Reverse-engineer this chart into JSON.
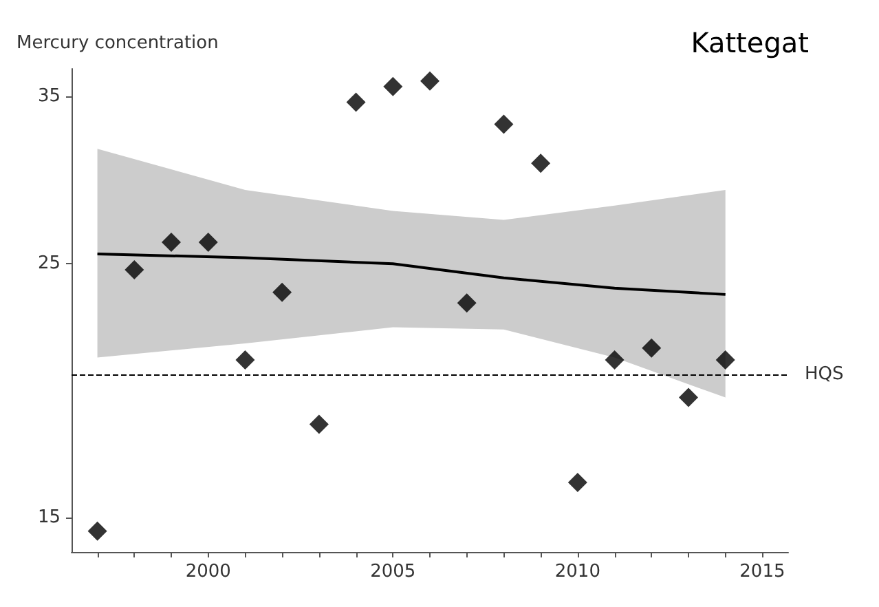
{
  "chart_data": {
    "type": "scatter",
    "title": "Kattegat",
    "ylabel": "Mercury concentration",
    "x": [
      1997,
      1998,
      1999,
      2000,
      2001,
      2002,
      2003,
      2004,
      2005,
      2006,
      2007,
      2008,
      2009,
      2010,
      2011,
      2012,
      2013,
      2014
    ],
    "series": [
      {
        "color": "#000000",
        "marker": "diamond",
        "values": [
          14.6,
          24.7,
          26.1,
          26.1,
          20.6,
          23.6,
          18.1,
          34.6,
          35.7,
          36.1,
          23.1,
          33.1,
          30.6,
          16.1,
          20.6,
          21.1,
          19.1,
          20.6
        ]
      },
      {
        "type": "line",
        "color": "#000000",
        "x": [
          1997,
          2001,
          2005,
          2008,
          2011,
          2014
        ],
        "values": [
          25.5,
          25.3,
          25.0,
          24.3,
          23.8,
          23.5
        ],
        "lower": [
          20.7,
          21.3,
          22.0,
          21.9,
          20.7,
          19.1
        ],
        "upper": [
          31.5,
          29.0,
          27.8,
          27.3,
          28.1,
          29.0
        ]
      }
    ],
    "log": "y",
    "xlim": [
      1996.3,
      2015.7
    ],
    "ylim": [
      14,
      37
    ],
    "xticks": [
      {
        "value": 1997,
        "label": null
      },
      {
        "value": 1998,
        "label": null
      },
      {
        "value": 1999,
        "label": null
      },
      2000,
      {
        "value": 2001,
        "label": null
      },
      {
        "value": 2002,
        "label": null
      },
      {
        "value": 2003,
        "label": null
      },
      {
        "value": 2004,
        "label": null
      },
      2005,
      {
        "value": 2006,
        "label": null
      },
      {
        "value": 2007,
        "label": null
      },
      {
        "value": 2008,
        "label": null
      },
      {
        "value": 2009,
        "label": null
      },
      2010,
      {
        "value": 2011,
        "label": null
      },
      {
        "value": 2012,
        "label": null
      },
      {
        "value": 2013,
        "label": null
      },
      {
        "value": 2014,
        "label": null
      },
      2015
    ],
    "yticks": [
      15,
      25,
      35
    ],
    "ref_lines": [
      {
        "axis": "y",
        "value": 20,
        "label": "HQS",
        "line_style": "dashed",
        "color": "#000000"
      }
    ],
    "grid": false
  }
}
